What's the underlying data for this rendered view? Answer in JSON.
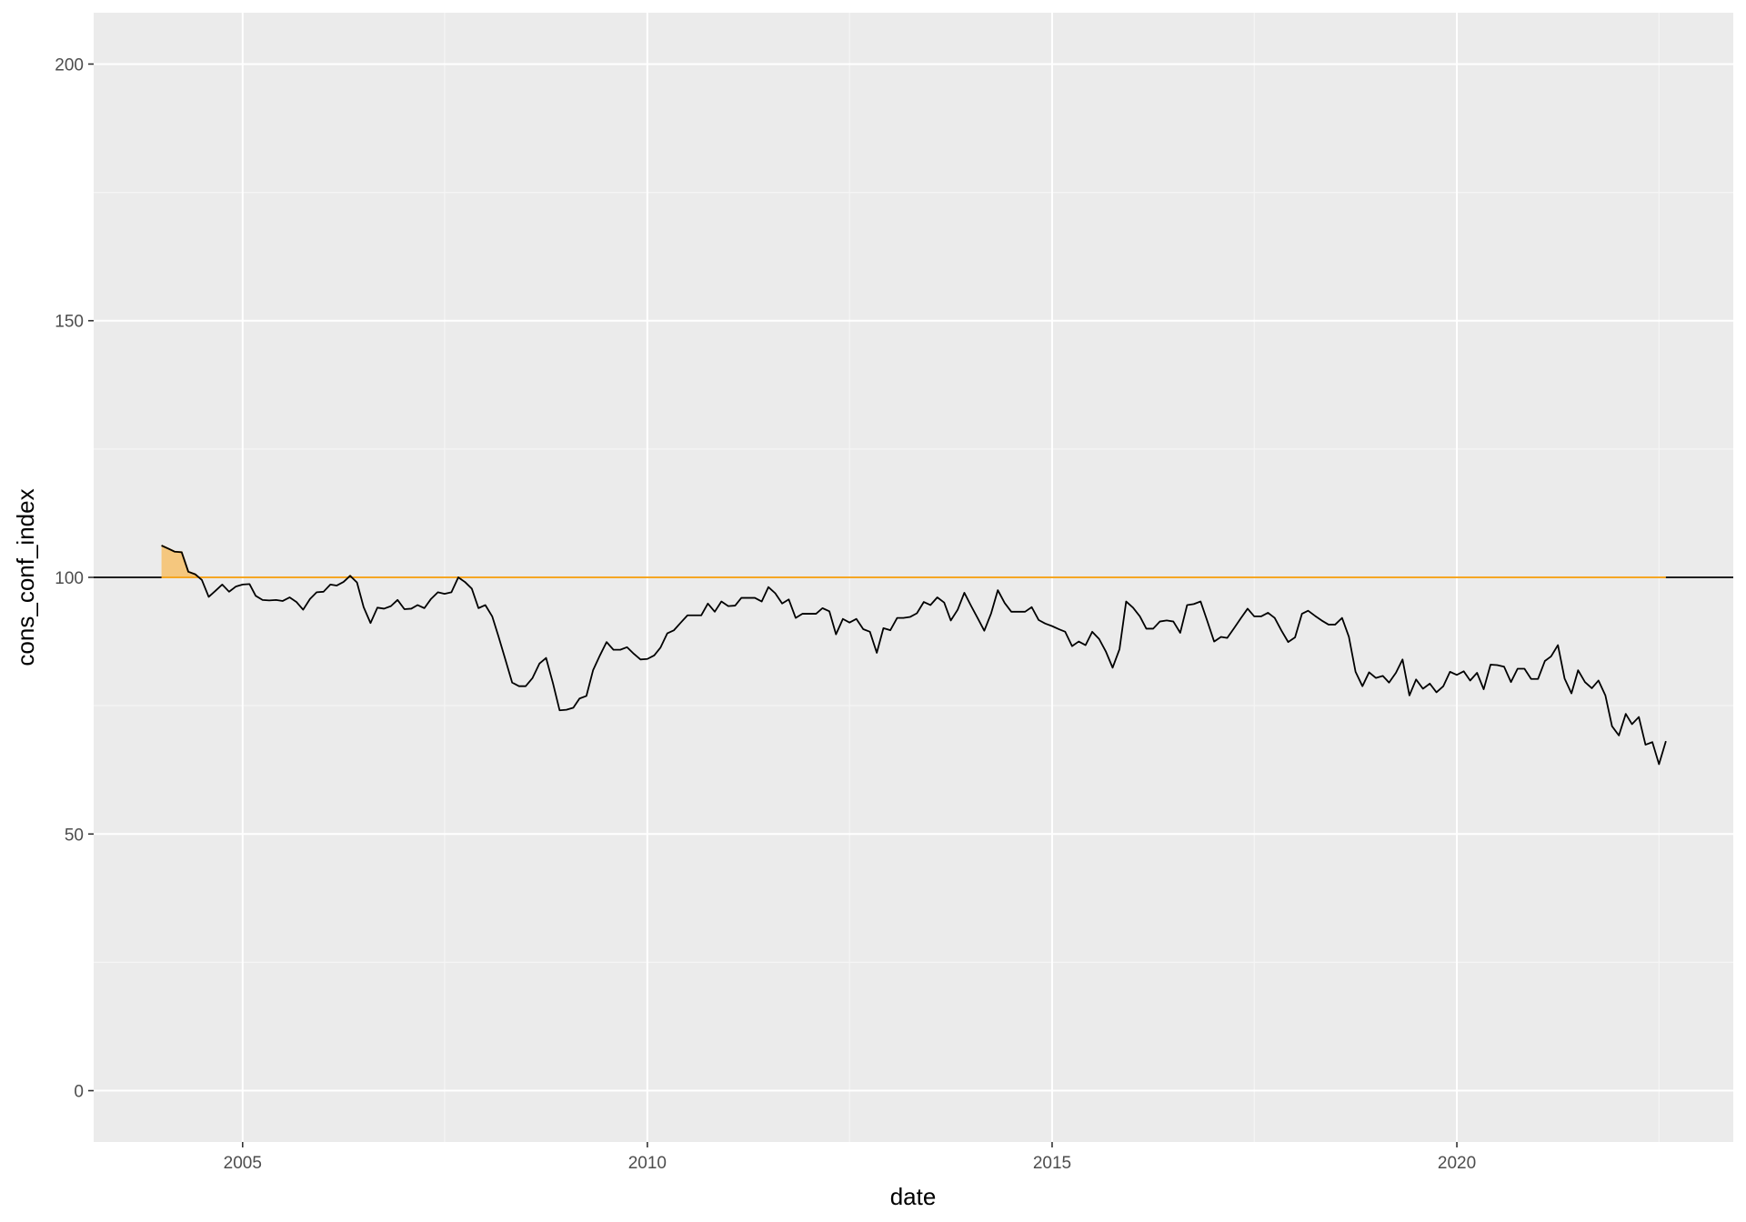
{
  "chart_data": {
    "type": "line",
    "title": "",
    "xlabel": "date",
    "ylabel": "cons_conf_index",
    "xlim": [
      "2003-03-01",
      "2023-06-01"
    ],
    "ylim": [
      -10,
      210
    ],
    "grid": true,
    "legend": "none",
    "x_ticks": [
      "2005",
      "2010",
      "2015",
      "2020"
    ],
    "y_ticks": [
      "0",
      "50",
      "100",
      "150",
      "200"
    ],
    "reference_line": {
      "value": 100,
      "color": "#000000"
    },
    "highlight": {
      "threshold": 100,
      "fill": "#f5c77e",
      "line_color": "#f5a623",
      "above_only": true
    },
    "colors": {
      "panel": "#ebebeb",
      "grid_major": "#ffffff",
      "grid_minor": "#f5f5f5",
      "series": "#000000"
    },
    "series": [
      {
        "values": [
          [
            "2004-01-01",
            106.2
          ],
          [
            "2004-02-01",
            105.6
          ],
          [
            "2004-03-01",
            105.0
          ],
          [
            "2004-04-01",
            104.9
          ],
          [
            "2004-05-01",
            101.1
          ],
          [
            "2004-06-01",
            100.6
          ],
          [
            "2004-07-01",
            99.5
          ],
          [
            "2004-08-01",
            96.2
          ],
          [
            "2004-09-01",
            97.4
          ],
          [
            "2004-10-01",
            98.6
          ],
          [
            "2004-11-01",
            97.2
          ],
          [
            "2004-12-01",
            98.2
          ],
          [
            "2005-01-01",
            98.6
          ],
          [
            "2005-02-01",
            98.7
          ],
          [
            "2005-03-01",
            96.4
          ],
          [
            "2005-04-01",
            95.6
          ],
          [
            "2005-05-01",
            95.5
          ],
          [
            "2005-06-01",
            95.6
          ],
          [
            "2005-07-01",
            95.4
          ],
          [
            "2005-08-01",
            96.1
          ],
          [
            "2005-09-01",
            95.2
          ],
          [
            "2005-10-01",
            93.7
          ],
          [
            "2005-11-01",
            95.8
          ],
          [
            "2005-12-01",
            97.1
          ],
          [
            "2006-01-01",
            97.2
          ],
          [
            "2006-02-01",
            98.6
          ],
          [
            "2006-03-01",
            98.4
          ],
          [
            "2006-04-01",
            99.1
          ],
          [
            "2006-05-01",
            100.3
          ],
          [
            "2006-06-01",
            99.0
          ],
          [
            "2006-07-01",
            94.2
          ],
          [
            "2006-08-01",
            91.1
          ],
          [
            "2006-09-01",
            94.1
          ],
          [
            "2006-10-01",
            93.9
          ],
          [
            "2006-11-01",
            94.4
          ],
          [
            "2006-12-01",
            95.6
          ],
          [
            "2007-01-01",
            93.8
          ],
          [
            "2007-02-01",
            93.9
          ],
          [
            "2007-03-01",
            94.6
          ],
          [
            "2007-04-01",
            94.0
          ],
          [
            "2007-05-01",
            95.8
          ],
          [
            "2007-06-01",
            97.1
          ],
          [
            "2007-07-01",
            96.8
          ],
          [
            "2007-08-01",
            97.1
          ],
          [
            "2007-09-01",
            100.0
          ],
          [
            "2007-10-01",
            99.1
          ],
          [
            "2007-11-01",
            97.8
          ],
          [
            "2007-12-01",
            94.0
          ],
          [
            "2008-01-01",
            94.6
          ],
          [
            "2008-02-01",
            92.4
          ],
          [
            "2008-03-01",
            88.4
          ],
          [
            "2008-04-01",
            83.9
          ],
          [
            "2008-05-01",
            79.5
          ],
          [
            "2008-06-01",
            78.8
          ],
          [
            "2008-07-01",
            78.8
          ],
          [
            "2008-08-01",
            80.4
          ],
          [
            "2008-09-01",
            83.2
          ],
          [
            "2008-10-01",
            84.3
          ],
          [
            "2008-11-01",
            79.4
          ],
          [
            "2008-12-01",
            74.1
          ],
          [
            "2009-01-01",
            74.2
          ],
          [
            "2009-02-01",
            74.6
          ],
          [
            "2009-03-01",
            76.4
          ],
          [
            "2009-04-01",
            76.9
          ],
          [
            "2009-05-01",
            81.9
          ],
          [
            "2009-06-01",
            84.8
          ],
          [
            "2009-07-01",
            87.4
          ],
          [
            "2009-08-01",
            85.9
          ],
          [
            "2009-09-01",
            85.9
          ],
          [
            "2009-10-01",
            86.4
          ],
          [
            "2009-11-01",
            85.1
          ],
          [
            "2009-12-01",
            84.0
          ],
          [
            "2010-01-01",
            84.1
          ],
          [
            "2010-02-01",
            84.8
          ],
          [
            "2010-03-01",
            86.3
          ],
          [
            "2010-04-01",
            89.1
          ],
          [
            "2010-05-01",
            89.7
          ],
          [
            "2010-06-01",
            91.2
          ],
          [
            "2010-07-01",
            92.6
          ],
          [
            "2010-08-01",
            92.6
          ],
          [
            "2010-09-01",
            92.6
          ],
          [
            "2010-10-01",
            94.9
          ],
          [
            "2010-11-01",
            93.3
          ],
          [
            "2010-12-01",
            95.3
          ],
          [
            "2011-01-01",
            94.4
          ],
          [
            "2011-02-01",
            94.5
          ],
          [
            "2011-03-01",
            96.0
          ],
          [
            "2011-04-01",
            96.0
          ],
          [
            "2011-05-01",
            96.0
          ],
          [
            "2011-06-01",
            95.3
          ],
          [
            "2011-07-01",
            98.1
          ],
          [
            "2011-08-01",
            96.9
          ],
          [
            "2011-09-01",
            94.9
          ],
          [
            "2011-10-01",
            95.7
          ],
          [
            "2011-11-01",
            92.1
          ],
          [
            "2011-12-01",
            92.9
          ],
          [
            "2012-01-01",
            92.9
          ],
          [
            "2012-02-01",
            92.9
          ],
          [
            "2012-03-01",
            94.0
          ],
          [
            "2012-04-01",
            93.4
          ],
          [
            "2012-05-01",
            88.9
          ],
          [
            "2012-06-01",
            91.9
          ],
          [
            "2012-07-01",
            91.2
          ],
          [
            "2012-08-01",
            91.9
          ],
          [
            "2012-09-01",
            89.9
          ],
          [
            "2012-10-01",
            89.4
          ],
          [
            "2012-11-01",
            85.3
          ],
          [
            "2012-12-01",
            90.1
          ],
          [
            "2013-01-01",
            89.7
          ],
          [
            "2013-02-01",
            92.1
          ],
          [
            "2013-03-01",
            92.1
          ],
          [
            "2013-04-01",
            92.3
          ],
          [
            "2013-05-01",
            93.0
          ],
          [
            "2013-06-01",
            95.2
          ],
          [
            "2013-07-01",
            94.6
          ],
          [
            "2013-08-01",
            96.1
          ],
          [
            "2013-09-01",
            95.1
          ],
          [
            "2013-10-01",
            91.6
          ],
          [
            "2013-11-01",
            93.7
          ],
          [
            "2013-12-01",
            97.0
          ],
          [
            "2014-01-01",
            94.4
          ],
          [
            "2014-02-01",
            91.9
          ],
          [
            "2014-03-01",
            89.6
          ],
          [
            "2014-04-01",
            93.0
          ],
          [
            "2014-05-01",
            97.5
          ],
          [
            "2014-06-01",
            95.0
          ],
          [
            "2014-07-01",
            93.3
          ],
          [
            "2014-08-01",
            93.3
          ],
          [
            "2014-09-01",
            93.3
          ],
          [
            "2014-10-01",
            94.2
          ],
          [
            "2014-11-01",
            91.7
          ],
          [
            "2014-12-01",
            91.0
          ],
          [
            "2015-01-01",
            90.5
          ],
          [
            "2015-02-01",
            89.9
          ],
          [
            "2015-03-01",
            89.4
          ],
          [
            "2015-04-01",
            86.6
          ],
          [
            "2015-05-01",
            87.5
          ],
          [
            "2015-06-01",
            86.8
          ],
          [
            "2015-07-01",
            89.4
          ],
          [
            "2015-08-01",
            88.0
          ],
          [
            "2015-09-01",
            85.5
          ],
          [
            "2015-10-01",
            82.4
          ],
          [
            "2015-11-01",
            86.0
          ],
          [
            "2015-12-01",
            95.3
          ],
          [
            "2016-01-01",
            94.1
          ],
          [
            "2016-02-01",
            92.4
          ],
          [
            "2016-03-01",
            90.0
          ],
          [
            "2016-04-01",
            90.0
          ],
          [
            "2016-05-01",
            91.4
          ],
          [
            "2016-06-01",
            91.6
          ],
          [
            "2016-07-01",
            91.4
          ],
          [
            "2016-08-01",
            89.2
          ],
          [
            "2016-09-01",
            94.6
          ],
          [
            "2016-10-01",
            94.8
          ],
          [
            "2016-11-01",
            95.3
          ],
          [
            "2016-12-01",
            91.5
          ],
          [
            "2017-01-01",
            87.5
          ],
          [
            "2017-02-01",
            88.4
          ],
          [
            "2017-03-01",
            88.2
          ],
          [
            "2017-04-01",
            90.1
          ],
          [
            "2017-05-01",
            92.0
          ],
          [
            "2017-06-01",
            93.9
          ],
          [
            "2017-07-01",
            92.4
          ],
          [
            "2017-08-01",
            92.4
          ],
          [
            "2017-09-01",
            93.1
          ],
          [
            "2017-10-01",
            92.1
          ],
          [
            "2017-11-01",
            89.6
          ],
          [
            "2017-12-01",
            87.4
          ],
          [
            "2018-01-01",
            88.3
          ],
          [
            "2018-02-01",
            92.9
          ],
          [
            "2018-03-01",
            93.5
          ],
          [
            "2018-04-01",
            92.5
          ],
          [
            "2018-05-01",
            91.6
          ],
          [
            "2018-06-01",
            90.8
          ],
          [
            "2018-07-01",
            90.8
          ],
          [
            "2018-08-01",
            92.1
          ],
          [
            "2018-09-01",
            88.4
          ],
          [
            "2018-10-01",
            81.6
          ],
          [
            "2018-11-01",
            78.8
          ],
          [
            "2018-12-01",
            81.5
          ],
          [
            "2019-01-01",
            80.4
          ],
          [
            "2019-02-01",
            80.8
          ],
          [
            "2019-03-01",
            79.5
          ],
          [
            "2019-04-01",
            81.4
          ],
          [
            "2019-05-01",
            84.0
          ],
          [
            "2019-06-01",
            77.0
          ],
          [
            "2019-07-01",
            80.1
          ],
          [
            "2019-08-01",
            78.3
          ],
          [
            "2019-09-01",
            79.3
          ],
          [
            "2019-10-01",
            77.6
          ],
          [
            "2019-11-01",
            78.8
          ],
          [
            "2019-12-01",
            81.6
          ],
          [
            "2020-01-01",
            81.0
          ],
          [
            "2020-02-01",
            81.7
          ],
          [
            "2020-03-01",
            79.9
          ],
          [
            "2020-04-01",
            81.4
          ],
          [
            "2020-05-01",
            78.2
          ],
          [
            "2020-06-01",
            83.0
          ],
          [
            "2020-07-01",
            82.9
          ],
          [
            "2020-08-01",
            82.6
          ],
          [
            "2020-09-01",
            79.6
          ],
          [
            "2020-10-01",
            82.2
          ],
          [
            "2020-11-01",
            82.2
          ],
          [
            "2020-12-01",
            80.2
          ],
          [
            "2021-01-01",
            80.2
          ],
          [
            "2021-02-01",
            83.7
          ],
          [
            "2021-03-01",
            84.6
          ],
          [
            "2021-04-01",
            86.8
          ],
          [
            "2021-05-01",
            80.3
          ],
          [
            "2021-06-01",
            77.4
          ],
          [
            "2021-07-01",
            81.9
          ],
          [
            "2021-08-01",
            79.6
          ],
          [
            "2021-09-01",
            78.4
          ],
          [
            "2021-10-01",
            79.9
          ],
          [
            "2021-11-01",
            77.0
          ],
          [
            "2021-12-01",
            71.0
          ],
          [
            "2022-01-01",
            69.2
          ],
          [
            "2022-02-01",
            73.4
          ],
          [
            "2022-03-01",
            71.4
          ],
          [
            "2022-04-01",
            72.8
          ],
          [
            "2022-05-01",
            67.4
          ],
          [
            "2022-06-01",
            67.9
          ],
          [
            "2022-07-01",
            63.6
          ],
          [
            "2022-08-01",
            68.1
          ]
        ]
      }
    ]
  }
}
